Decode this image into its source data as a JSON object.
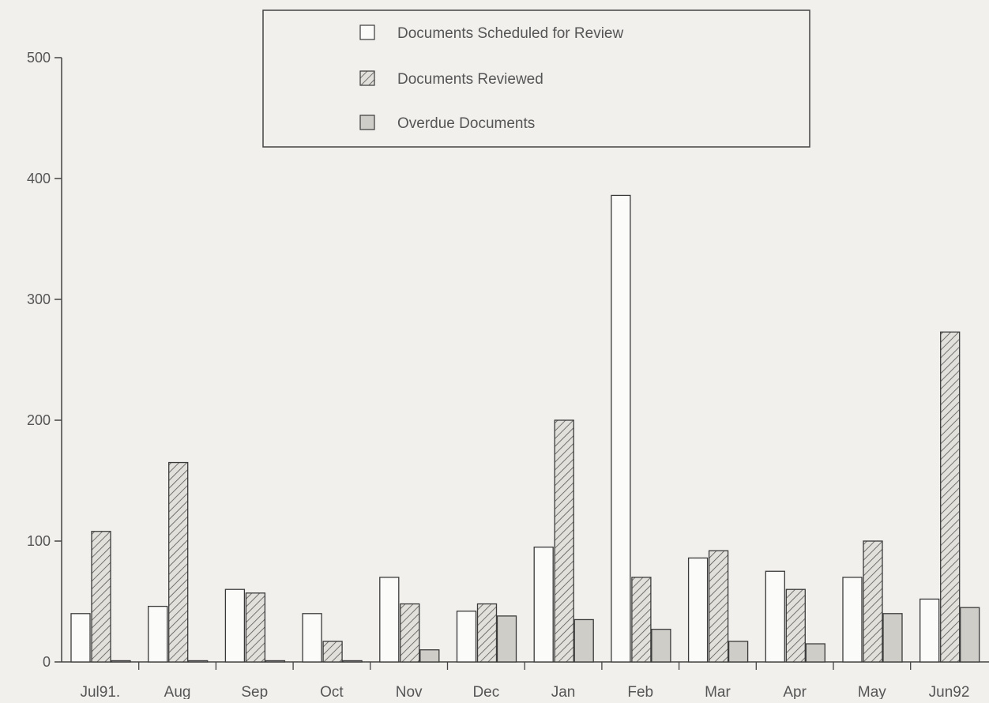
{
  "colors": {
    "background": "#f1f0ed",
    "axis": "#444444",
    "bar_outline": "#3a3a3a",
    "scheduled_fill": "#fbfbf9",
    "reviewed_fill": "#e2e0da",
    "reviewed_hatch": "#555555",
    "overdue_fill": "#cfcdc7",
    "text": "#555555"
  },
  "legend": {
    "items": [
      {
        "label": "Documents Scheduled for Review",
        "swatch": "plain"
      },
      {
        "label": "Documents Reviewed",
        "swatch": "hatched"
      },
      {
        "label": "Overdue Documents",
        "swatch": "shaded"
      }
    ],
    "placement": "top-center"
  },
  "chart_data": {
    "type": "bar",
    "title": "",
    "xlabel": "",
    "ylabel": "",
    "ylim": [
      0,
      500
    ],
    "yticks": [
      0,
      100,
      200,
      300,
      400,
      500
    ],
    "grid": false,
    "legend_position": "top-center",
    "categories": [
      "Jul91.",
      "Aug",
      "Sep",
      "Oct",
      "Nov",
      "Dec",
      "Jan",
      "Feb",
      "Mar",
      "Apr",
      "May",
      "Jun92"
    ],
    "series": [
      {
        "name": "Documents Scheduled for Review",
        "pattern": "plain",
        "values": [
          40,
          46,
          60,
          40,
          70,
          42,
          95,
          386,
          86,
          75,
          70,
          52
        ]
      },
      {
        "name": "Documents Reviewed",
        "pattern": "hatched",
        "values": [
          108,
          165,
          57,
          17,
          48,
          48,
          200,
          70,
          92,
          60,
          100,
          273
        ]
      },
      {
        "name": "Overdue Documents",
        "pattern": "shaded",
        "values": [
          1,
          1,
          1,
          1,
          10,
          38,
          35,
          27,
          17,
          15,
          40,
          45
        ]
      }
    ]
  }
}
